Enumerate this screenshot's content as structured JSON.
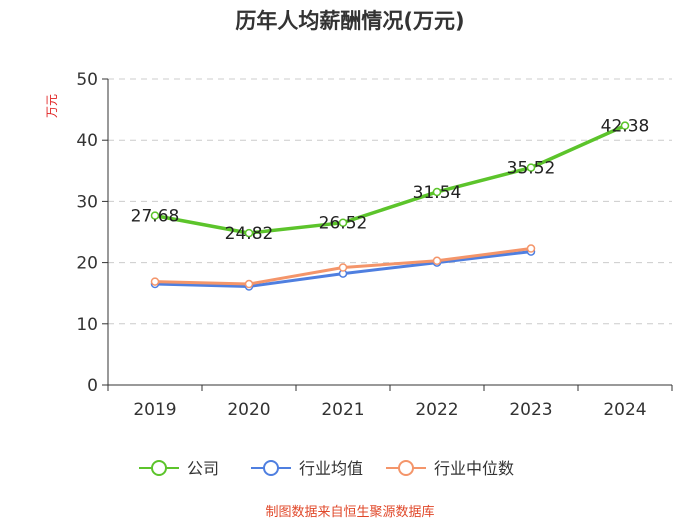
{
  "title": "历年人均薪酬情况(万元)",
  "source": "制图数据来自恒生聚源数据库",
  "colors": {
    "company": "#5cc42b",
    "industry_avg": "#4f7fe0",
    "industry_median": "#f4956a",
    "grid": "#cccccc",
    "axis": "#333333",
    "ylabel": "#e02020",
    "source": "#e0482a"
  },
  "chart_data": {
    "type": "line",
    "title": "历年人均薪酬情况(万元)",
    "ylabel": "万元",
    "xlabel": "",
    "categories": [
      "2019",
      "2020",
      "2021",
      "2022",
      "2023",
      "2024"
    ],
    "ylim": [
      0,
      50
    ],
    "yticks": [
      0,
      10,
      20,
      30,
      40,
      50
    ],
    "grid": true,
    "legend_position": "bottom",
    "series": [
      {
        "name": "公司",
        "key": "company",
        "values": [
          27.68,
          24.82,
          26.52,
          31.54,
          35.52,
          42.38
        ],
        "labels": [
          "27.68",
          "24.82",
          "26.52",
          "31.54",
          "35.52",
          "42.38"
        ]
      },
      {
        "name": "行业均值",
        "key": "industry_avg",
        "values": [
          16.5,
          16.1,
          18.2,
          20.0,
          21.8,
          null
        ]
      },
      {
        "name": "行业中位数",
        "key": "industry_median",
        "values": [
          16.9,
          16.5,
          19.2,
          20.3,
          22.3,
          null
        ]
      }
    ]
  }
}
